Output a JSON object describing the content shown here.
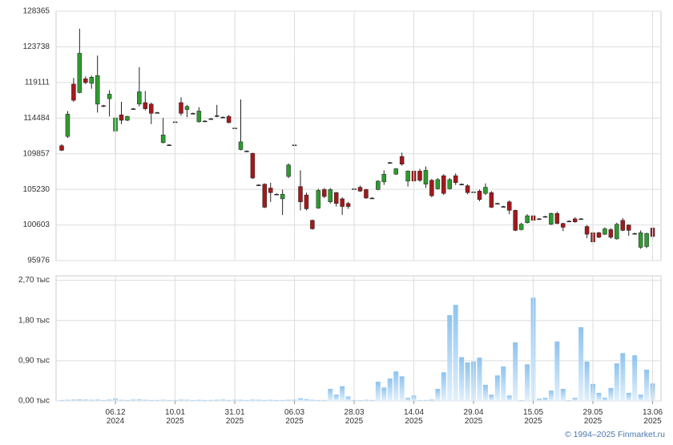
{
  "chart_data": [
    {
      "type": "candlestick",
      "up_color": "#2f9a2f",
      "down_color": "#a3191b",
      "ylim": [
        95976,
        128365
      ],
      "yticks": [
        95976,
        100603,
        105230,
        109857,
        114484,
        119111,
        123738,
        128365
      ],
      "grid": true,
      "open": [
        110900,
        112100,
        118900,
        117800,
        119600,
        119000,
        116300,
        116100,
        117000,
        112800,
        114900,
        114200,
        115700,
        116300,
        116500,
        116300,
        115200,
        111300,
        111000,
        114000,
        116500,
        115600,
        115100,
        114000,
        114100,
        114400,
        114800,
        114600,
        114700,
        113200,
        110400,
        110200,
        109900,
        105800,
        105900,
        105400,
        104600,
        104000,
        106900,
        111000,
        105600,
        104500,
        101200,
        102800,
        105200,
        103600,
        104800,
        104000,
        103400,
        105300,
        105500,
        105200,
        104100,
        105200,
        106200,
        108700,
        107200,
        109500,
        106300,
        107600,
        107600,
        105900,
        106400,
        105300,
        107000,
        105300,
        107000,
        105900,
        105700,
        104900,
        105000,
        104700,
        104800,
        103400,
        103000,
        103600,
        102500,
        100000,
        100900,
        101800,
        101400,
        101700,
        100700,
        102100,
        100800,
        101100,
        101400,
        101400,
        100400,
        99600,
        99600,
        99400,
        100000,
        98800,
        101200,
        100600,
        99500,
        97700,
        97800,
        100200
      ],
      "high": [
        111100,
        115400,
        119700,
        126100,
        119900,
        120000,
        122600,
        116200,
        118100,
        116500,
        116600,
        114800,
        115800,
        121100,
        118000,
        116500,
        115300,
        114500,
        111100,
        114100,
        117200,
        116200,
        115200,
        115900,
        114200,
        114500,
        116200,
        114700,
        114900,
        113300,
        116900,
        110300,
        110000,
        105900,
        106000,
        106100,
        104700,
        105200,
        108600,
        111100,
        107700,
        104800,
        101300,
        105300,
        105400,
        105400,
        104900,
        104200,
        103600,
        105400,
        105700,
        105300,
        104200,
        106400,
        107700,
        108800,
        108000,
        110000,
        107700,
        107800,
        107900,
        108200,
        106600,
        106700,
        107200,
        106700,
        107300,
        106000,
        105900,
        105000,
        105200,
        106000,
        105000,
        103500,
        103100,
        103800,
        102600,
        100900,
        102000,
        102000,
        101500,
        101800,
        102200,
        102300,
        100900,
        101200,
        101600,
        101500,
        100600,
        99800,
        99700,
        100300,
        100200,
        100900,
        101500,
        100700,
        99600,
        99900,
        99600,
        100400
      ],
      "low": [
        110200,
        111900,
        116600,
        117700,
        118900,
        118300,
        115200,
        115900,
        114700,
        109800,
        113700,
        114100,
        115600,
        116000,
        115500,
        113700,
        115100,
        111200,
        110900,
        113900,
        114800,
        114600,
        115000,
        113900,
        114000,
        114300,
        114600,
        114500,
        113800,
        113100,
        110300,
        110100,
        106600,
        105700,
        102800,
        103600,
        104500,
        101900,
        106700,
        110900,
        102500,
        102500,
        100000,
        102700,
        104100,
        103400,
        103000,
        101900,
        102700,
        105200,
        104900,
        104000,
        104000,
        105100,
        105800,
        108600,
        107100,
        108300,
        105600,
        106200,
        106200,
        105400,
        104200,
        105200,
        104500,
        105200,
        105800,
        105800,
        104600,
        104800,
        103700,
        104500,
        102800,
        103300,
        102900,
        102000,
        99800,
        99900,
        100800,
        101100,
        101300,
        101600,
        100600,
        100700,
        99800,
        101000,
        100900,
        101300,
        98900,
        97900,
        98900,
        99300,
        98800,
        98700,
        99800,
        99200,
        99400,
        97500,
        97600,
        98700
      ],
      "close": [
        110300,
        115000,
        116800,
        122900,
        119100,
        119800,
        120000,
        116000,
        117600,
        114500,
        114200,
        114700,
        115700,
        117900,
        115700,
        115100,
        115200,
        112300,
        111000,
        114000,
        115100,
        116000,
        115100,
        115400,
        114100,
        114400,
        114800,
        114600,
        113900,
        113200,
        111400,
        110200,
        106700,
        105800,
        102900,
        104800,
        104600,
        104600,
        108400,
        111000,
        103600,
        102700,
        100100,
        105100,
        104300,
        105200,
        103400,
        103000,
        103000,
        105300,
        105000,
        104100,
        104100,
        106300,
        107200,
        108700,
        107900,
        108500,
        107600,
        106300,
        106400,
        107700,
        104400,
        106500,
        104700,
        106500,
        106100,
        105900,
        104800,
        104900,
        103900,
        105500,
        102900,
        103400,
        103000,
        102500,
        99900,
        100700,
        101800,
        101200,
        101400,
        101700,
        102100,
        100800,
        100300,
        101100,
        101000,
        101400,
        99400,
        98400,
        99000,
        100100,
        99000,
        100700,
        99900,
        99900,
        99500,
        99600,
        99500,
        99100
      ]
    },
    {
      "type": "bar",
      "color": "#8ec3ef",
      "ylim": [
        0,
        2800
      ],
      "yticks": [
        {
          "value": 0,
          "label": "0,00 тыс"
        },
        {
          "value": 900,
          "label": "0,90 тыс"
        },
        {
          "value": 1800,
          "label": "1,80 тыс"
        },
        {
          "value": 2700,
          "label": "2,70 тыс"
        }
      ],
      "grid": true,
      "categories": [
        null,
        null,
        null,
        null,
        null,
        null,
        null,
        null,
        null,
        "06.12\n2024",
        null,
        null,
        null,
        null,
        null,
        null,
        null,
        null,
        null,
        "10.01\n2025",
        null,
        null,
        null,
        null,
        null,
        null,
        null,
        null,
        null,
        "31.01\n2025",
        null,
        null,
        null,
        null,
        null,
        null,
        null,
        null,
        null,
        "06.03\n2025",
        null,
        null,
        null,
        null,
        null,
        null,
        null,
        null,
        null,
        "28.03\n2025",
        null,
        null,
        null,
        null,
        null,
        null,
        null,
        null,
        null,
        "14.04\n2025",
        null,
        null,
        null,
        null,
        null,
        null,
        null,
        null,
        null,
        "29.04\n2025",
        null,
        null,
        null,
        null,
        null,
        null,
        null,
        null,
        null,
        "15.05\n2025",
        null,
        null,
        null,
        null,
        null,
        null,
        null,
        null,
        null,
        "29.05\n2025",
        null,
        null,
        null,
        null,
        null,
        null,
        null,
        null,
        null,
        "13.06\n2025"
      ],
      "values": [
        20,
        25,
        30,
        35,
        30,
        25,
        30,
        20,
        30,
        55,
        25,
        20,
        30,
        35,
        25,
        20,
        20,
        25,
        20,
        20,
        30,
        25,
        20,
        25,
        20,
        20,
        25,
        30,
        20,
        25,
        25,
        20,
        30,
        25,
        20,
        25,
        20,
        20,
        25,
        30,
        60,
        40,
        25,
        20,
        20,
        270,
        140,
        330,
        100,
        20,
        15,
        25,
        20,
        430,
        300,
        500,
        660,
        550,
        70,
        120,
        15,
        20,
        30,
        270,
        640,
        1920,
        2150,
        980,
        860,
        880,
        970,
        360,
        140,
        570,
        770,
        120,
        1310,
        15,
        820,
        2310,
        50,
        70,
        230,
        1330,
        270,
        15,
        70,
        1650,
        880,
        380,
        180,
        70,
        290,
        840,
        1070,
        180,
        1020,
        140,
        700,
        390
      ]
    }
  ],
  "copyright": "© 1994–2025 Finmarket.ru"
}
